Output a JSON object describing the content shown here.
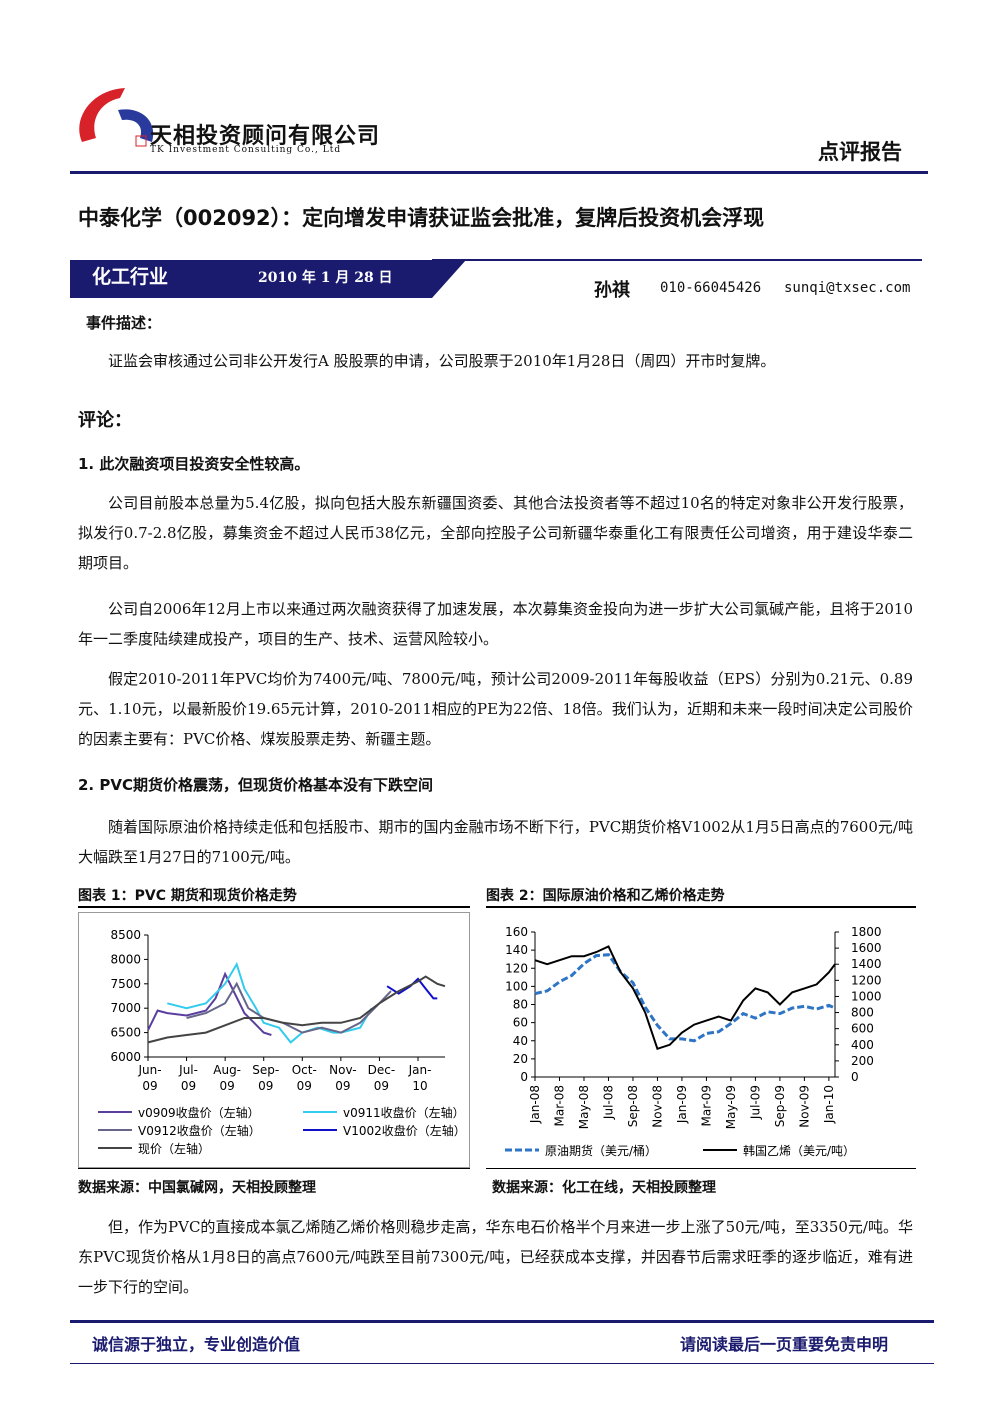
{
  "header": {
    "company_cn": "天相投资顾问有限公司",
    "company_en": "TK Investment Consulting Co., Ltd",
    "report_type": "点评报告"
  },
  "title": "中泰化学（002092）：定向增发申请获证监会批准，复牌后投资机会浮现",
  "banner": {
    "industry": "化工行业",
    "date": "2010 年 1 月 28 日",
    "analyst": "孙祺",
    "phone": "010-66045426",
    "email": "sunqi@txsec.com"
  },
  "event": {
    "heading": "事件描述：",
    "text": "证监会审核通过公司非公开发行A 股股票的申请，公司股票于2010年1月28日（周四）开市时复牌。"
  },
  "comment_heading": "评论：",
  "section1": {
    "heading": "1. 此次融资项目投资安全性较高。",
    "paragraphs": [
      "公司目前股本总量为5.4亿股，拟向包括大股东新疆国资委、其他合法投资者等不超过10名的特定对象非公开发行股票，拟发行0.7-2.8亿股，募集资金不超过人民币38亿元，全部向控股子公司新疆华泰重化工有限责任公司增资，用于建设华泰二期项目。",
      "公司自2006年12月上市以来通过两次融资获得了加速发展，本次募集资金投向为进一步扩大公司氯碱产能，且将于2010年一二季度陆续建成投产，项目的生产、技术、运营风险较小。",
      "假定2010-2011年PVC均价为7400元/吨、7800元/吨，预计公司2009-2011年每股收益（EPS）分别为0.21元、0.89元、1.10元，以最新股价19.65元计算，2010-2011相应的PE为22倍、18倍。我们认为，近期和未来一段时间决定公司股价的因素主要有：PVC价格、煤炭股票走势、新疆主题。"
    ]
  },
  "section2": {
    "heading": "2. PVC期货价格震荡，但现货价格基本没有下跌空间",
    "paragraphs": [
      "随着国际原油价格持续走低和包括股市、期市的国内金融市场不断下行，PVC期货价格V1002从1月5日高点的7600元/吨大幅跌至1月27日的7100元/吨。",
      "但，作为PVC的直接成本氯乙烯随乙烯价格则稳步走高，华东电石价格半个月来进一步上涨了50元/吨，至3350元/吨。华东PVC现货价格从1月8日的高点7600元/吨跌至目前7300元/吨，已经获成本支撑，并因春节后需求旺季的逐步临近，难有进一步下行的空间。"
    ]
  },
  "chart_data": [
    {
      "type": "line",
      "title": "图表 1：PVC 期货和现货价格走势",
      "source": "数据来源：中国氯碱网，天相投顾整理",
      "xlim": [
        0,
        7.7
      ],
      "ylim": [
        6000,
        8500
      ],
      "yticks": [
        6000,
        6500,
        7000,
        7500,
        8000,
        8500
      ],
      "xticks": [
        {
          "value": 0,
          "label": [
            "Jun-",
            "09"
          ]
        },
        {
          "value": 1,
          "label": [
            "Jul-",
            "09"
          ]
        },
        {
          "value": 2,
          "label": [
            "Aug-",
            "09"
          ]
        },
        {
          "value": 3,
          "label": [
            "Sep-",
            "09"
          ]
        },
        {
          "value": 4,
          "label": [
            "Oct-",
            "09"
          ]
        },
        {
          "value": 5,
          "label": [
            "Nov-",
            "09"
          ]
        },
        {
          "value": 6,
          "label": [
            "Dec-",
            "09"
          ]
        },
        {
          "value": 7,
          "label": [
            "Jan-",
            "10"
          ]
        }
      ],
      "legend": "bottom",
      "series": [
        {
          "name": "v0909收盘价（左轴）",
          "color": "#5b3f9e",
          "x": [
            0,
            0.25,
            0.5,
            1,
            1.5,
            1.75,
            2,
            2.25,
            2.5,
            2.75,
            3,
            3.2
          ],
          "values": [
            6550,
            6950,
            6900,
            6850,
            6950,
            7200,
            7700,
            7300,
            6900,
            6700,
            6500,
            6450
          ]
        },
        {
          "name": "v0911收盘价（左轴）",
          "color": "#33ccee",
          "x": [
            0.5,
            1,
            1.5,
            2,
            2.3,
            2.5,
            2.8,
            3,
            3.4,
            3.7,
            4,
            4.4,
            4.8,
            5,
            5.5,
            5.8
          ],
          "values": [
            7100,
            7000,
            7100,
            7500,
            7900,
            7400,
            7000,
            6700,
            6600,
            6300,
            6500,
            6600,
            6500,
            6500,
            6600,
            7000
          ]
        },
        {
          "name": "V0912收盘价（左轴）",
          "color": "#66668a",
          "x": [
            1,
            1.5,
            2,
            2.3,
            2.6,
            3,
            3.5,
            4,
            4.5,
            5,
            5.5,
            6,
            6.3
          ],
          "values": [
            6800,
            6900,
            7100,
            7500,
            7000,
            6800,
            6700,
            6500,
            6600,
            6500,
            6700,
            7100,
            7350
          ]
        },
        {
          "name": "V1002收盘价（左轴）",
          "color": "#1010cc",
          "x": [
            6.2,
            6.5,
            6.8,
            7,
            7.2,
            7.4,
            7.5
          ],
          "values": [
            7450,
            7300,
            7450,
            7600,
            7400,
            7200,
            7200
          ]
        },
        {
          "name": "现价（左轴）",
          "color": "#444444",
          "x": [
            0,
            0.5,
            1,
            1.5,
            2,
            2.5,
            3,
            3.5,
            4,
            4.5,
            5,
            5.5,
            6,
            6.5,
            7,
            7.2,
            7.5,
            7.7
          ],
          "values": [
            6300,
            6400,
            6450,
            6500,
            6650,
            6800,
            6800,
            6700,
            6650,
            6700,
            6700,
            6800,
            7100,
            7350,
            7550,
            7650,
            7500,
            7450
          ]
        }
      ]
    },
    {
      "type": "line",
      "title": "图表 2：国际原油价格和乙烯价格走势",
      "source": "数据来源：化工在线，天相投顾整理",
      "xlim": [
        0,
        24.5
      ],
      "ylim": [
        0,
        160
      ],
      "yticks": [
        0,
        20,
        40,
        60,
        80,
        100,
        120,
        140,
        160
      ],
      "y2lim": [
        0,
        1800
      ],
      "y2ticks": [
        0,
        200,
        400,
        600,
        800,
        1000,
        1200,
        1400,
        1600,
        1800
      ],
      "xticks": [
        {
          "value": 0,
          "label": "Jan-08"
        },
        {
          "value": 2,
          "label": "Mar-08"
        },
        {
          "value": 4,
          "label": "May-08"
        },
        {
          "value": 6,
          "label": "Jul-08"
        },
        {
          "value": 8,
          "label": "Sep-08"
        },
        {
          "value": 10,
          "label": "Nov-08"
        },
        {
          "value": 12,
          "label": "Jan-09"
        },
        {
          "value": 14,
          "label": "Mar-09"
        },
        {
          "value": 16,
          "label": "May-09"
        },
        {
          "value": 18,
          "label": "Jul-09"
        },
        {
          "value": 20,
          "label": "Sep-09"
        },
        {
          "value": 22,
          "label": "Nov-09"
        },
        {
          "value": 24,
          "label": "Jan-10"
        }
      ],
      "legend": "bottom",
      "series": [
        {
          "name": "原油期货（美元/桶）",
          "color": "#2e75c6",
          "dashed": true,
          "x": [
            0,
            1,
            2,
            3,
            4,
            5,
            6,
            7,
            8,
            9,
            10,
            11,
            12,
            13,
            14,
            15,
            16,
            17,
            18,
            19,
            20,
            21,
            22,
            23,
            24,
            24.5
          ],
          "values": [
            92,
            95,
            105,
            112,
            125,
            134,
            135,
            116,
            104,
            77,
            57,
            42,
            42,
            40,
            48,
            50,
            59,
            70,
            65,
            72,
            70,
            76,
            78,
            75,
            79,
            76
          ]
        },
        {
          "name": "韩国乙烯（美元/吨）",
          "color": "#000000",
          "axis": "y2",
          "x": [
            0,
            1,
            2,
            3,
            4,
            5,
            6,
            7,
            8,
            9,
            10,
            11,
            12,
            13,
            14,
            15,
            16,
            17,
            18,
            19,
            20,
            21,
            22,
            23,
            24,
            24.5
          ],
          "values": [
            1450,
            1400,
            1450,
            1500,
            1500,
            1550,
            1620,
            1300,
            1100,
            800,
            350,
            400,
            550,
            650,
            700,
            750,
            700,
            950,
            1100,
            1050,
            900,
            1050,
            1100,
            1150,
            1300,
            1400
          ]
        }
      ]
    }
  ],
  "footer": {
    "left": "诚信源于独立，专业创造价值",
    "right": "请阅读最后一页重要免责申明"
  }
}
